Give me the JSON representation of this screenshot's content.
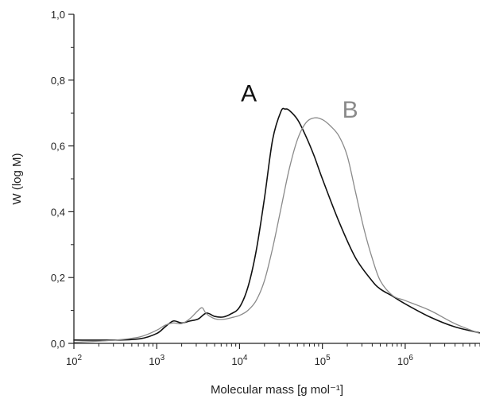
{
  "chart_data": {
    "type": "line",
    "xlabel": "Molecular mass [g mol⁻¹]",
    "ylabel": "W (log M)",
    "x_scale": "log",
    "xlim": [
      100,
      8000000
    ],
    "ylim": [
      0,
      1.0
    ],
    "xticks": [
      {
        "value": 100,
        "base": "10",
        "exp": "2"
      },
      {
        "value": 1000,
        "base": "10",
        "exp": "3"
      },
      {
        "value": 10000,
        "base": "10",
        "exp": "4"
      },
      {
        "value": 100000,
        "base": "10",
        "exp": "5"
      },
      {
        "value": 1000000,
        "base": "10",
        "exp": "6"
      }
    ],
    "yticks": [
      {
        "value": 0.0,
        "label": "0,0"
      },
      {
        "value": 0.2,
        "label": "0,2"
      },
      {
        "value": 0.4,
        "label": "0,4"
      },
      {
        "value": 0.6,
        "label": "0,6"
      },
      {
        "value": 0.8,
        "label": "0,8"
      },
      {
        "value": 1.0,
        "label": "1,0"
      }
    ],
    "grid": false,
    "series": [
      {
        "name": "A",
        "color": "#111111",
        "label_color": "#111111",
        "points": [
          [
            100,
            0.01
          ],
          [
            316,
            0.01
          ],
          [
            631,
            0.014
          ],
          [
            1000,
            0.03
          ],
          [
            1259,
            0.05
          ],
          [
            1585,
            0.068
          ],
          [
            1995,
            0.062
          ],
          [
            2512,
            0.068
          ],
          [
            3162,
            0.074
          ],
          [
            3981,
            0.092
          ],
          [
            5012,
            0.082
          ],
          [
            6310,
            0.08
          ],
          [
            7943,
            0.09
          ],
          [
            10000,
            0.11
          ],
          [
            12589,
            0.17
          ],
          [
            15849,
            0.28
          ],
          [
            19953,
            0.44
          ],
          [
            25119,
            0.62
          ],
          [
            31623,
            0.705
          ],
          [
            35481,
            0.712
          ],
          [
            39811,
            0.708
          ],
          [
            50119,
            0.68
          ],
          [
            63096,
            0.63
          ],
          [
            79433,
            0.57
          ],
          [
            100000,
            0.5
          ],
          [
            158489,
            0.37
          ],
          [
            251189,
            0.26
          ],
          [
            398107,
            0.19
          ],
          [
            501187,
            0.165
          ],
          [
            707946,
            0.143
          ],
          [
            1000000,
            0.12
          ],
          [
            1995262,
            0.08
          ],
          [
            3981072,
            0.05
          ],
          [
            7943282,
            0.032
          ]
        ]
      },
      {
        "name": "B",
        "color": "#8a8a8a",
        "label_color": "#8a8a8a",
        "points": [
          [
            100,
            0.003
          ],
          [
            316,
            0.01
          ],
          [
            631,
            0.02
          ],
          [
            1000,
            0.04
          ],
          [
            1259,
            0.055
          ],
          [
            1585,
            0.062
          ],
          [
            1995,
            0.06
          ],
          [
            2512,
            0.075
          ],
          [
            3162,
            0.1
          ],
          [
            3548,
            0.108
          ],
          [
            3981,
            0.09
          ],
          [
            5012,
            0.075
          ],
          [
            6310,
            0.073
          ],
          [
            7943,
            0.078
          ],
          [
            10000,
            0.085
          ],
          [
            12589,
            0.1
          ],
          [
            15849,
            0.13
          ],
          [
            19953,
            0.19
          ],
          [
            25119,
            0.29
          ],
          [
            31623,
            0.41
          ],
          [
            39811,
            0.53
          ],
          [
            50119,
            0.62
          ],
          [
            63096,
            0.67
          ],
          [
            79433,
            0.685
          ],
          [
            100000,
            0.68
          ],
          [
            125893,
            0.66
          ],
          [
            158489,
            0.63
          ],
          [
            199526,
            0.57
          ],
          [
            251189,
            0.46
          ],
          [
            316228,
            0.35
          ],
          [
            398107,
            0.26
          ],
          [
            501187,
            0.19
          ],
          [
            707946,
            0.145
          ],
          [
            1000000,
            0.13
          ],
          [
            1995262,
            0.1
          ],
          [
            3981072,
            0.06
          ],
          [
            7943282,
            0.03
          ]
        ]
      }
    ]
  }
}
